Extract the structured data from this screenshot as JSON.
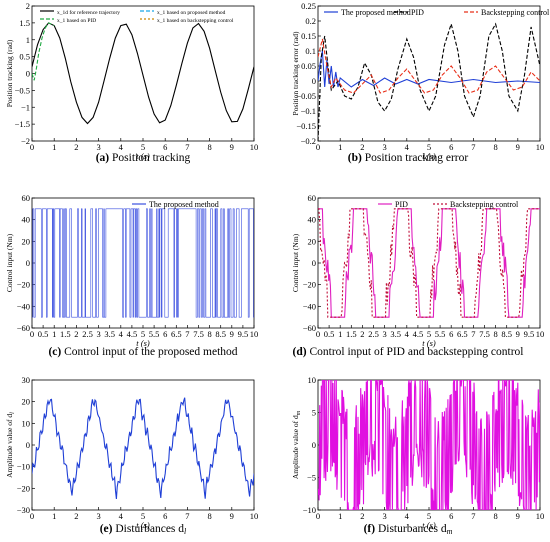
{
  "chart_data": [
    {
      "panel_id": "a",
      "type": "line",
      "caption_letter": "(a)",
      "caption_text": "Position tracking",
      "xlabel": "t (s)",
      "ylabel": "Position tracking (rad)",
      "xlim": [
        0,
        10
      ],
      "ylim": [
        -2,
        2
      ],
      "xticks": [
        0,
        1,
        2,
        3,
        4,
        5,
        6,
        7,
        8,
        9,
        10
      ],
      "yticks": [
        -2,
        -1.5,
        -1,
        -0.5,
        0,
        0.5,
        1,
        1.5,
        2
      ],
      "ytick_labels": [
        "−2",
        "−1.5",
        "−1",
        "−0.5",
        "0",
        "0.5",
        "1",
        "1.5",
        "2"
      ],
      "legend": [
        {
          "label": "x_1d for reference trajectory",
          "color": "#000000",
          "dash": ""
        },
        {
          "label": "x_1 based on proposed method",
          "color": "#1aa6e6",
          "dash": "4,2"
        },
        {
          "label": "x_1 based on PID",
          "color": "#22aa44",
          "dash": "4,2"
        },
        {
          "label": "x_1 based on backstepping control",
          "color": "#cc8800",
          "dash": "2,2"
        }
      ],
      "series": [
        {
          "name": "x_1d for reference trajectory",
          "color": "#000000",
          "points": [
            [
              0,
              0.2
            ],
            [
              0.25,
              0.85
            ],
            [
              0.5,
              1.3
            ],
            [
              0.75,
              1.5
            ],
            [
              1,
              1.42
            ],
            [
              1.25,
              1.05
            ],
            [
              1.5,
              0.45
            ],
            [
              1.75,
              -0.25
            ],
            [
              2,
              -0.85
            ],
            [
              2.25,
              -1.3
            ],
            [
              2.5,
              -1.48
            ],
            [
              2.75,
              -1.3
            ],
            [
              3,
              -0.85
            ],
            [
              3.25,
              -0.2
            ],
            [
              3.5,
              0.45
            ],
            [
              3.75,
              1.05
            ],
            [
              4,
              1.42
            ],
            [
              4.25,
              1.46
            ],
            [
              4.5,
              1.15
            ],
            [
              4.75,
              0.6
            ],
            [
              5,
              -0.05
            ],
            [
              5.25,
              -0.7
            ],
            [
              5.5,
              -1.2
            ],
            [
              5.75,
              -1.46
            ],
            [
              6,
              -1.38
            ],
            [
              6.25,
              -0.95
            ],
            [
              6.5,
              -0.35
            ],
            [
              6.75,
              0.3
            ],
            [
              7,
              0.9
            ],
            [
              7.25,
              1.35
            ],
            [
              7.5,
              1.48
            ],
            [
              7.75,
              1.25
            ],
            [
              8,
              0.75
            ],
            [
              8.25,
              0.1
            ],
            [
              8.5,
              -0.55
            ],
            [
              8.75,
              -1.1
            ],
            [
              9,
              -1.43
            ],
            [
              9.25,
              -1.42
            ],
            [
              9.5,
              -1.05
            ],
            [
              9.75,
              -0.45
            ],
            [
              10,
              0.2
            ]
          ]
        },
        {
          "name": "x_1 based on PID",
          "color": "#22aa44",
          "points": [
            [
              0,
              0
            ],
            [
              0.1,
              -0.2
            ],
            [
              0.2,
              0.15
            ],
            [
              0.3,
              0.6
            ],
            [
              0.45,
              1.05
            ],
            [
              0.6,
              1.35
            ],
            [
              0.75,
              1.5
            ],
            [
              1,
              1.42
            ]
          ]
        }
      ]
    },
    {
      "panel_id": "b",
      "type": "line",
      "caption_letter": "(b)",
      "caption_text": "Position tracking error",
      "xlabel": "t (s)",
      "ylabel": "Position tracking error (rad)",
      "xlim": [
        0,
        10
      ],
      "ylim": [
        -0.2,
        0.25
      ],
      "xticks": [
        0,
        1,
        2,
        3,
        4,
        5,
        6,
        7,
        8,
        9,
        10
      ],
      "yticks": [
        -0.2,
        -0.15,
        -0.1,
        -0.05,
        0,
        0.05,
        0.1,
        0.15,
        0.2,
        0.25
      ],
      "ytick_labels": [
        "−0.2",
        "−0.15",
        "−0.1",
        "−0.05",
        "0",
        "0.05",
        "0.1",
        "0.15",
        "0.2",
        "0.25"
      ],
      "legend": [
        {
          "label": "The proposed method",
          "color": "#1f3fd6",
          "dash": ""
        },
        {
          "label": "PID",
          "color": "#000000",
          "dash": "4,2"
        },
        {
          "label": "Backstepping control",
          "color": "#e8301a",
          "dash": "4,2"
        }
      ],
      "series": [
        {
          "name": "The proposed method",
          "color": "#1f3fd6",
          "points": [
            [
              0,
              0
            ],
            [
              0.1,
              0.06
            ],
            [
              0.2,
              0.1
            ],
            [
              0.3,
              -0.02
            ],
            [
              0.4,
              0.07
            ],
            [
              0.5,
              -0.01
            ],
            [
              0.6,
              0.05
            ],
            [
              0.7,
              -0.02
            ],
            [
              0.8,
              0.03
            ],
            [
              0.9,
              -0.02
            ],
            [
              1,
              0.01
            ],
            [
              1.5,
              -0.02
            ],
            [
              2,
              0.005
            ],
            [
              2.5,
              -0.015
            ],
            [
              3,
              0.01
            ],
            [
              3.5,
              -0.01
            ],
            [
              4,
              0.005
            ],
            [
              4.5,
              -0.01
            ],
            [
              5,
              0.005
            ],
            [
              6,
              -0.005
            ],
            [
              7,
              0.005
            ],
            [
              8,
              -0.005
            ],
            [
              9,
              0.0
            ],
            [
              10,
              -0.005
            ]
          ]
        },
        {
          "name": "PID",
          "color": "#000000",
          "points": [
            [
              0,
              -0.2
            ],
            [
              0.15,
              0.08
            ],
            [
              0.3,
              0.15
            ],
            [
              0.45,
              0.05
            ],
            [
              0.6,
              -0.03
            ],
            [
              0.9,
              0.0
            ],
            [
              1.2,
              -0.05
            ],
            [
              1.5,
              -0.06
            ],
            [
              1.8,
              -0.02
            ],
            [
              2.1,
              0.06
            ],
            [
              2.4,
              0.02
            ],
            [
              2.7,
              -0.07
            ],
            [
              3,
              -0.1
            ],
            [
              3.3,
              -0.06
            ],
            [
              3.6,
              0.04
            ],
            [
              4,
              0.14
            ],
            [
              4.3,
              0.08
            ],
            [
              4.6,
              -0.03
            ],
            [
              5,
              -0.1
            ],
            [
              5.3,
              -0.05
            ],
            [
              5.7,
              0.12
            ],
            [
              6,
              0.19
            ],
            [
              6.3,
              0.1
            ],
            [
              6.6,
              -0.05
            ],
            [
              7,
              -0.12
            ],
            [
              7.3,
              -0.05
            ],
            [
              7.7,
              0.15
            ],
            [
              8,
              0.19
            ],
            [
              8.3,
              0.1
            ],
            [
              8.6,
              -0.05
            ],
            [
              9,
              -0.1
            ],
            [
              9.3,
              0.02
            ],
            [
              9.6,
              0.18
            ],
            [
              10,
              0.05
            ]
          ]
        },
        {
          "name": "Backstepping control",
          "color": "#e8301a",
          "points": [
            [
              0,
              0.08
            ],
            [
              0.2,
              0.14
            ],
            [
              0.4,
              0.05
            ],
            [
              0.6,
              -0.02
            ],
            [
              0.8,
              0.01
            ],
            [
              1.2,
              -0.03
            ],
            [
              1.6,
              -0.04
            ],
            [
              2,
              -0.01
            ],
            [
              2.4,
              0.02
            ],
            [
              2.8,
              -0.04
            ],
            [
              3.2,
              -0.03
            ],
            [
              3.6,
              0.01
            ],
            [
              4,
              0.04
            ],
            [
              4.4,
              0.0
            ],
            [
              4.8,
              -0.04
            ],
            [
              5.2,
              -0.03
            ],
            [
              5.6,
              0.02
            ],
            [
              6,
              0.05
            ],
            [
              6.4,
              0.01
            ],
            [
              6.8,
              -0.04
            ],
            [
              7.2,
              -0.03
            ],
            [
              7.6,
              0.03
            ],
            [
              8,
              0.05
            ],
            [
              8.4,
              0.01
            ],
            [
              8.8,
              -0.03
            ],
            [
              9.2,
              -0.02
            ],
            [
              9.6,
              0.03
            ],
            [
              10,
              0.0
            ]
          ]
        }
      ]
    },
    {
      "panel_id": "c",
      "type": "line",
      "caption_letter": "(c)",
      "caption_text": "Control input of the proposed method",
      "xlabel": "t (s)",
      "ylabel": "Control input (Nm)",
      "xlim": [
        0,
        10
      ],
      "ylim": [
        -60,
        60
      ],
      "xticks": [
        0,
        0.5,
        1,
        1.5,
        2,
        2.5,
        3,
        3.5,
        4,
        4.5,
        5,
        5.5,
        6,
        6.5,
        7,
        7.5,
        8,
        8.5,
        9,
        9.5,
        10
      ],
      "yticks": [
        -60,
        -40,
        -20,
        0,
        20,
        40,
        60
      ],
      "ytick_labels": [
        "−60",
        "−40",
        "−20",
        "0",
        "20",
        "40",
        "60"
      ],
      "legend": [
        {
          "label": "The proposed method",
          "color": "#3b4fe0",
          "dash": ""
        }
      ],
      "series": [
        {
          "name": "The proposed method",
          "color": "#3b4fe0",
          "pattern": "switching",
          "amplitude": 50,
          "period": 3.2,
          "phase": 0.3
        }
      ]
    },
    {
      "panel_id": "d",
      "type": "line",
      "caption_letter": "(d)",
      "caption_text": "Control input of PID and backstepping control",
      "xlabel": "t (s)",
      "ylabel": "Control input (Nm)",
      "xlim": [
        0,
        10
      ],
      "ylim": [
        -60,
        60
      ],
      "xticks": [
        0,
        0.5,
        1,
        1.5,
        2,
        2.5,
        3,
        3.5,
        4,
        4.5,
        5,
        5.5,
        6,
        6.5,
        7,
        7.5,
        8,
        8.5,
        9,
        9.5,
        10
      ],
      "yticks": [
        -60,
        -40,
        -20,
        0,
        20,
        40,
        60
      ],
      "ytick_labels": [
        "−60",
        "−40",
        "−20",
        "0",
        "20",
        "40",
        "60"
      ],
      "legend": [
        {
          "label": "PID",
          "color": "#e020c0",
          "dash": ""
        },
        {
          "label": "Backstepping control",
          "color": "#c0103a",
          "dash": "2,2"
        }
      ],
      "series": [
        {
          "name": "PID",
          "color": "#e020c0",
          "pattern": "saturated",
          "amplitude": 50,
          "period": 2.0,
          "phase": 0.6
        },
        {
          "name": "Backstepping control",
          "color": "#c0103a",
          "pattern": "saturated",
          "amplitude": 50,
          "period": 2.0,
          "phase": 0.75
        }
      ]
    },
    {
      "panel_id": "e",
      "type": "line",
      "caption_letter": "(e)",
      "caption_text": "Disturbances d",
      "caption_sub": "l",
      "xlabel": "t (s)",
      "ylabel": "Amplitude value of d",
      "ylabel_sub": "l",
      "xlim": [
        0,
        10
      ],
      "ylim": [
        -30,
        30
      ],
      "xticks": [
        0,
        1,
        2,
        3,
        4,
        5,
        6,
        7,
        8,
        9,
        10
      ],
      "yticks": [
        -30,
        -20,
        -10,
        0,
        10,
        20,
        30
      ],
      "ytick_labels": [
        "−30",
        "−20",
        "−10",
        "0",
        "10",
        "20",
        "30"
      ],
      "series": [
        {
          "name": "",
          "color": "#1f3fd6",
          "pattern": "disturbance_l",
          "amplitude": 22,
          "period": 2.0
        }
      ]
    },
    {
      "panel_id": "f",
      "type": "line",
      "caption_letter": "(f)",
      "caption_text": "Disturbances d",
      "caption_sub": "m",
      "xlabel": "t (s)",
      "ylabel": "Amplitude value of d",
      "ylabel_sub": "m",
      "xlim": [
        0,
        10
      ],
      "ylim": [
        -10,
        10
      ],
      "xticks": [
        0,
        1,
        2,
        3,
        4,
        5,
        6,
        7,
        8,
        9,
        10
      ],
      "yticks": [
        -10,
        -5,
        0,
        5,
        10
      ],
      "ytick_labels": [
        "−10",
        "−5",
        "0",
        "5",
        "10"
      ],
      "series": [
        {
          "name": "",
          "color": "#e010e0",
          "pattern": "disturbance_m",
          "amplitude": 10,
          "period": 2.0
        }
      ]
    }
  ]
}
